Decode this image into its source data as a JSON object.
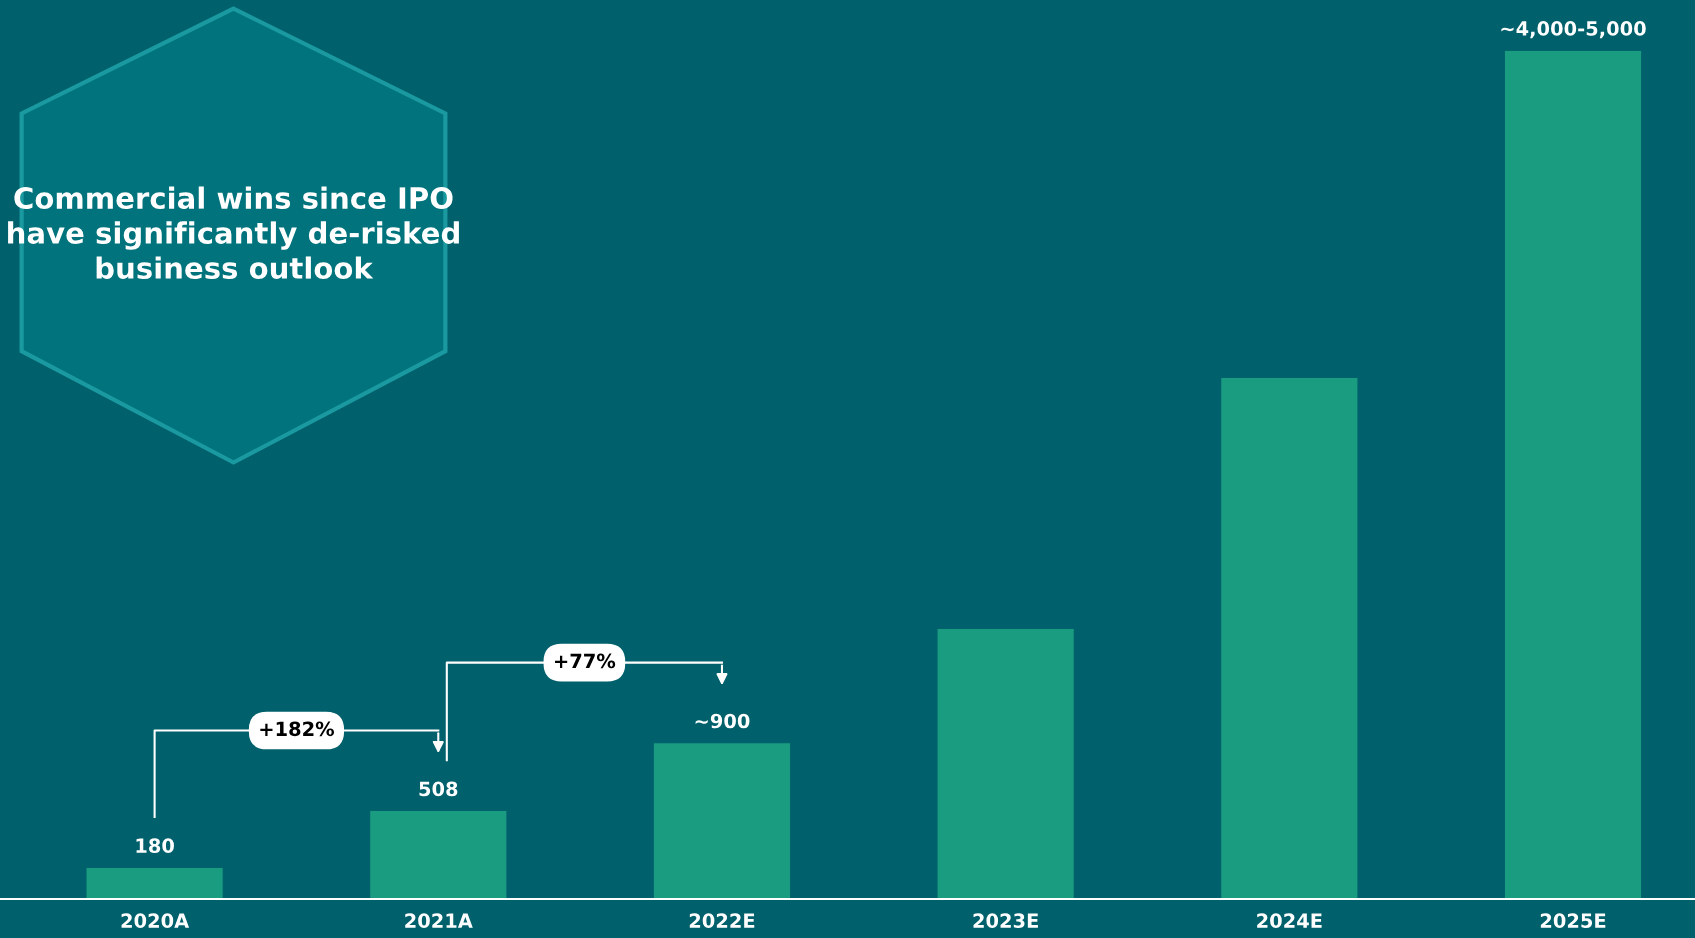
{
  "chart_data": {
    "type": "bar",
    "title": "Commercial wins since IPO have significantly de-risked business outlook",
    "categories": [
      "2020A",
      "2021A",
      "2022E",
      "2023E",
      "2024E",
      "2025E"
    ],
    "values": [
      180,
      508,
      900,
      1560,
      3010,
      4900
    ],
    "ylim": [
      0,
      4900
    ],
    "color": "#1a9c80",
    "value_labels": [
      "180",
      "508",
      "~900",
      null,
      null,
      "~4,000-5,000"
    ],
    "annotations": [
      "+182%",
      "+77%"
    ],
    "grid": false,
    "legend": false
  }
}
